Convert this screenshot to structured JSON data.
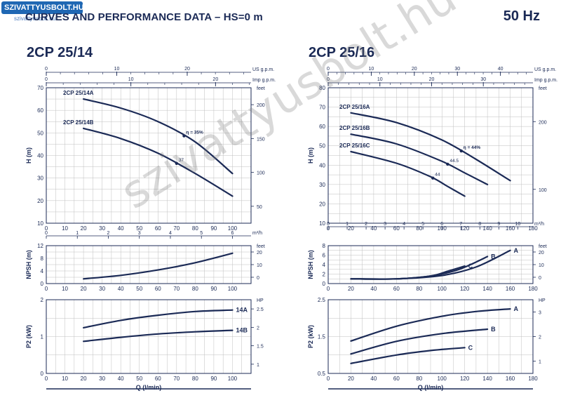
{
  "header": {
    "logo_text": "SZIVATTYUSBOLT.HU",
    "logo_sub": "szivattyusbolt.hu",
    "title": "CURVES AND PERFORMANCE DATA  –  HS=0 m",
    "frequency": "50 Hz",
    "watermark": "szivattyusbolt.hu"
  },
  "colors": {
    "curve": "#1b2a56",
    "grid": "#bfbfbf",
    "text": "#1b2a56",
    "logo": "#1f67b3"
  },
  "chart_data": [
    {
      "id": "left",
      "type": "line",
      "title": "2CP 25/14",
      "xlabel": "Q (l/min)",
      "x_ticks": [
        0,
        10,
        20,
        30,
        40,
        50,
        60,
        70,
        80,
        90,
        100
      ],
      "x_range": [
        0,
        110
      ],
      "top_axes": [
        {
          "unit": "US g.p.m.",
          "range": [
            0,
            29.06
          ],
          "ticks": [
            0,
            10,
            20
          ]
        },
        {
          "unit": "Imp g.p.m.",
          "range": [
            0,
            24.2
          ],
          "ticks": [
            0,
            10,
            20
          ]
        },
        {
          "unit": "m³/h",
          "range": [
            0,
            6.6
          ],
          "ticks": [
            0,
            1,
            2,
            3,
            4,
            5,
            6
          ],
          "position": "below-head"
        }
      ],
      "head": {
        "ylabel": "H (m)",
        "ylim": [
          10,
          70
        ],
        "yticks": [
          10,
          20,
          30,
          40,
          50,
          60,
          70
        ],
        "right_unit": "feet",
        "right_ticks": [
          50,
          100,
          150,
          200
        ],
        "series": [
          {
            "name": "2CP 25/14A",
            "x": [
              20,
              40,
              60,
              80,
              100
            ],
            "y": [
              65,
              61,
              55,
              46,
              32
            ],
            "eff_x": 74,
            "eff_label": "η = 35%"
          },
          {
            "name": "2CP 25/14B",
            "x": [
              20,
              40,
              60,
              80,
              100
            ],
            "y": [
              52,
              47.5,
              41,
              32,
              22
            ],
            "eff_x": 70,
            "eff_label": "37"
          }
        ]
      },
      "npsh": {
        "ylabel": "NPSH (m)",
        "ylim": [
          0,
          12
        ],
        "yticks": [
          0,
          4,
          8,
          12
        ],
        "right_unit": "feet",
        "right_ticks": [
          0,
          10,
          20
        ],
        "series": [
          {
            "name": "",
            "x": [
              20,
              40,
              60,
              80,
              100
            ],
            "y": [
              1.5,
              2.6,
              4.3,
              6.6,
              9.6
            ]
          }
        ]
      },
      "power": {
        "ylabel": "P2 (kW)",
        "ylim": [
          0,
          2
        ],
        "yticks": [
          0,
          1,
          2
        ],
        "right_unit": "HP",
        "right_ticks": [
          1,
          1.5,
          2,
          2.5
        ],
        "series": [
          {
            "name": "14A",
            "x": [
              20,
              40,
              60,
              80,
              100
            ],
            "y": [
              1.24,
              1.44,
              1.58,
              1.68,
              1.72
            ]
          },
          {
            "name": "14B",
            "x": [
              20,
              40,
              60,
              80,
              100
            ],
            "y": [
              0.87,
              0.98,
              1.07,
              1.13,
              1.17
            ]
          }
        ]
      }
    },
    {
      "id": "right",
      "type": "line",
      "title": "2CP 25/16",
      "xlabel": "Q (l/min)",
      "x_ticks": [
        0,
        20,
        40,
        60,
        80,
        100,
        120,
        140,
        160,
        180
      ],
      "x_range": [
        0,
        180
      ],
      "top_axes": [
        {
          "unit": "US g.p.m.",
          "range": [
            0,
            47.55
          ],
          "ticks": [
            0,
            10,
            20,
            30,
            40
          ]
        },
        {
          "unit": "Imp g.p.m.",
          "range": [
            0,
            39.6
          ],
          "ticks": [
            0,
            10,
            20,
            30
          ]
        },
        {
          "unit": "m³/h",
          "range": [
            0,
            10.8
          ],
          "ticks": [
            0,
            1,
            2,
            3,
            4,
            5,
            6,
            7,
            8,
            9,
            10
          ],
          "position": "below-head"
        }
      ],
      "head": {
        "ylabel": "H (m)",
        "ylim": [
          10,
          80
        ],
        "yticks": [
          10,
          20,
          30,
          40,
          50,
          60,
          70,
          80
        ],
        "right_unit": "feet",
        "right_ticks": [
          100,
          200
        ],
        "series": [
          {
            "name": "2CP 25/16A",
            "x": [
              20,
              60,
              100,
              130,
              160
            ],
            "y": [
              67,
              62,
              53,
              43,
              32
            ],
            "eff_x": 117,
            "eff_label": "η = 44%"
          },
          {
            "name": "2CP 25/16B",
            "x": [
              20,
              60,
              100,
              120,
              140
            ],
            "y": [
              56,
              51,
              42,
              36,
              30
            ],
            "eff_x": 105,
            "eff_label": "44.5"
          },
          {
            "name": "2CP 25/16C",
            "x": [
              20,
              60,
              90,
              105,
              120
            ],
            "y": [
              47,
              41,
              34,
              29,
              24
            ],
            "eff_x": 92,
            "eff_label": "44"
          }
        ]
      },
      "npsh": {
        "ylabel": "NPSH (m)",
        "ylim": [
          0,
          8
        ],
        "yticks": [
          0,
          2,
          4,
          6,
          8
        ],
        "right_unit": "feet",
        "right_ticks": [
          0,
          10,
          20
        ],
        "series": [
          {
            "name": "A",
            "x": [
              20,
              60,
              100,
              130,
              160
            ],
            "y": [
              1,
              1,
              1.7,
              3.5,
              7
            ]
          },
          {
            "name": "B",
            "x": [
              20,
              60,
              90,
              115,
              140
            ],
            "y": [
              1,
              1,
              1.6,
              3,
              5.7
            ]
          },
          {
            "name": "C",
            "x": [
              20,
              60,
              90,
              105,
              120
            ],
            "y": [
              1,
              1,
              1.6,
              2.6,
              3.7
            ]
          }
        ]
      },
      "power": {
        "ylabel": "P2 (kW)",
        "ylim": [
          0.5,
          2.5
        ],
        "yticks": [
          0.5,
          1.5,
          2.5
        ],
        "right_unit": "HP",
        "right_ticks": [
          1,
          2,
          3
        ],
        "series": [
          {
            "name": "A",
            "x": [
              20,
              60,
              100,
              130,
              160
            ],
            "y": [
              1.38,
              1.78,
              2.05,
              2.18,
              2.25
            ]
          },
          {
            "name": "B",
            "x": [
              20,
              60,
              100,
              140
            ],
            "y": [
              1.03,
              1.37,
              1.58,
              1.7
            ]
          },
          {
            "name": "C",
            "x": [
              20,
              60,
              90,
              120
            ],
            "y": [
              0.77,
              1.0,
              1.12,
              1.2
            ]
          }
        ]
      }
    }
  ]
}
